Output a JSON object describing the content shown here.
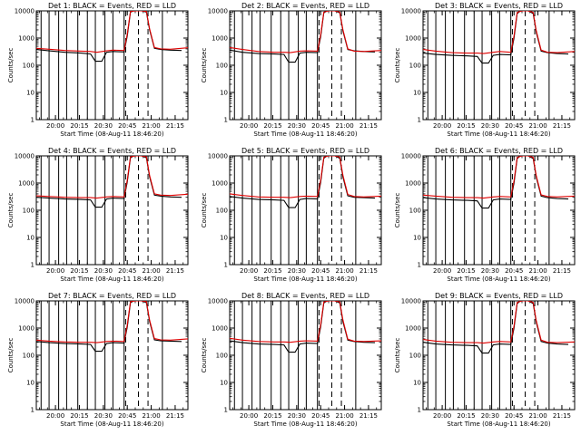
{
  "colors": {
    "events": "#000000",
    "lld": "#e00000"
  },
  "chart_data": {
    "type": "line",
    "yscale": "log",
    "ylim": [
      1,
      10000
    ],
    "ylabel": "Counts/sec",
    "xlabel": "Start Time (08-Aug-11 18:46:20)",
    "x_tick_labels": [
      "20:00",
      "20:15",
      "20:30",
      "20:45",
      "21:00",
      "21:15"
    ],
    "x_tick_minutes": [
      74,
      89,
      104,
      119,
      134,
      149
    ],
    "y_tick_labels": [
      "1",
      "10",
      "100",
      "1000",
      "10000"
    ],
    "y_tick_values": [
      1,
      10,
      100,
      1000,
      10000
    ],
    "xlim_minutes": [
      62,
      157
    ],
    "vertical_markers": {
      "solid_minutes": [
        65,
        70,
        76,
        81,
        88,
        94,
        99,
        105,
        110,
        117,
        141
      ],
      "dashed_minutes": [
        118,
        126,
        132
      ]
    },
    "panels": [
      {
        "title": "Det 1: BLACK = Events, RED = LLD",
        "series": [
          {
            "name": "Events",
            "color": "#000000",
            "x": [
              62,
              70,
              80,
              90,
              96,
              99,
              103,
              106,
              110,
              117,
              119,
              121,
              123,
              128,
              131,
              133,
              136,
              140,
              146,
              153
            ],
            "y": [
              380,
              340,
              300,
              280,
              260,
              140,
              140,
              300,
              320,
              310,
              1200,
              9000,
              10000,
              10000,
              9000,
              2000,
              420,
              380,
              360,
              350
            ]
          },
          {
            "name": "LLD",
            "color": "#e00000",
            "x": [
              62,
              70,
              80,
              90,
              96,
              100,
              106,
              110,
              117,
              119,
              121,
              124,
              128,
              131,
              133,
              136,
              140,
              146,
              157
            ],
            "y": [
              420,
              390,
              350,
              330,
              320,
              300,
              340,
              360,
              350,
              1400,
              9500,
              10000,
              10000,
              9500,
              2200,
              450,
              400,
              390,
              440
            ]
          }
        ]
      },
      {
        "title": "Det 2: BLACK = Events, RED = LLD",
        "series": [
          {
            "name": "Events",
            "color": "#000000",
            "x": [
              62,
              70,
              80,
              90,
              96,
              99,
              103,
              106,
              110,
              117,
              119,
              121,
              123,
              128,
              131,
              133,
              136,
              140,
              146,
              153
            ],
            "y": [
              360,
              300,
              270,
              260,
              250,
              130,
              130,
              280,
              300,
              290,
              1100,
              8500,
              10000,
              10000,
              8500,
              1800,
              380,
              340,
              320,
              310
            ]
          },
          {
            "name": "LLD",
            "color": "#e00000",
            "x": [
              62,
              70,
              80,
              90,
              96,
              100,
              106,
              110,
              117,
              119,
              121,
              124,
              128,
              131,
              133,
              136,
              140,
              146,
              157
            ],
            "y": [
              450,
              380,
              320,
              300,
              300,
              290,
              330,
              340,
              330,
              1300,
              9000,
              10000,
              10000,
              9000,
              2000,
              400,
              330,
              320,
              350
            ]
          }
        ]
      },
      {
        "title": "Det 3: BLACK = Events, RED = LLD",
        "series": [
          {
            "name": "Events",
            "color": "#000000",
            "x": [
              62,
              70,
              80,
              90,
              96,
              99,
              103,
              106,
              110,
              117,
              119,
              121,
              123,
              128,
              131,
              133,
              136,
              140,
              146,
              153
            ],
            "y": [
              280,
              250,
              230,
              220,
              210,
              120,
              120,
              230,
              250,
              240,
              1000,
              8000,
              10000,
              10000,
              8000,
              1600,
              330,
              290,
              270,
              260
            ]
          },
          {
            "name": "LLD",
            "color": "#e00000",
            "x": [
              62,
              70,
              80,
              90,
              96,
              100,
              106,
              110,
              117,
              119,
              121,
              124,
              128,
              131,
              133,
              136,
              140,
              146,
              157
            ],
            "y": [
              380,
              330,
              290,
              280,
              280,
              270,
              300,
              320,
              300,
              1200,
              8800,
              10000,
              10000,
              8800,
              1800,
              360,
              300,
              290,
              320
            ]
          }
        ]
      },
      {
        "title": "Det 4: BLACK = Events, RED = LLD",
        "series": [
          {
            "name": "Events",
            "color": "#000000",
            "x": [
              62,
              70,
              80,
              90,
              96,
              99,
              103,
              106,
              110,
              117,
              119,
              121,
              123,
              128,
              131,
              133,
              136,
              140,
              146,
              153
            ],
            "y": [
              300,
              280,
              260,
              250,
              240,
              130,
              130,
              260,
              280,
              270,
              1100,
              8500,
              10000,
              10000,
              8500,
              1700,
              360,
              330,
              310,
              300
            ]
          },
          {
            "name": "LLD",
            "color": "#e00000",
            "x": [
              62,
              70,
              80,
              90,
              96,
              100,
              106,
              110,
              117,
              119,
              121,
              124,
              128,
              131,
              133,
              136,
              140,
              146,
              157
            ],
            "y": [
              340,
              320,
              300,
              290,
              290,
              280,
              310,
              320,
              310,
              1300,
              9200,
              10000,
              10000,
              9200,
              1900,
              400,
              360,
              350,
              390
            ]
          }
        ]
      },
      {
        "title": "Det 5: BLACK = Events, RED = LLD",
        "series": [
          {
            "name": "Events",
            "color": "#000000",
            "x": [
              62,
              70,
              80,
              90,
              96,
              99,
              103,
              106,
              110,
              117,
              119,
              121,
              123,
              128,
              131,
              133,
              136,
              140,
              146,
              153
            ],
            "y": [
              320,
              280,
              250,
              240,
              230,
              125,
              125,
              250,
              270,
              260,
              1050,
              8200,
              10000,
              10000,
              8200,
              1650,
              340,
              300,
              290,
              280
            ]
          },
          {
            "name": "LLD",
            "color": "#e00000",
            "x": [
              62,
              70,
              80,
              90,
              96,
              100,
              106,
              110,
              117,
              119,
              121,
              124,
              128,
              131,
              133,
              136,
              140,
              146,
              157
            ],
            "y": [
              400,
              350,
              310,
              300,
              300,
              290,
              320,
              330,
              320,
              1250,
              9000,
              10000,
              10000,
              9000,
              1900,
              380,
              320,
              310,
              330
            ]
          }
        ]
      },
      {
        "title": "Det 6: BLACK = Events, RED = LLD",
        "series": [
          {
            "name": "Events",
            "color": "#000000",
            "x": [
              62,
              70,
              80,
              90,
              96,
              99,
              103,
              106,
              110,
              117,
              119,
              121,
              123,
              128,
              131,
              133,
              136,
              140,
              146,
              153
            ],
            "y": [
              290,
              260,
              240,
              230,
              220,
              120,
              120,
              240,
              260,
              250,
              1000,
              8000,
              10000,
              10000,
              8000,
              1600,
              330,
              290,
              270,
              260
            ]
          },
          {
            "name": "LLD",
            "color": "#e00000",
            "x": [
              62,
              70,
              80,
              90,
              96,
              100,
              106,
              110,
              117,
              119,
              121,
              124,
              128,
              131,
              133,
              136,
              140,
              146,
              157
            ],
            "y": [
              360,
              330,
              300,
              290,
              290,
              280,
              310,
              320,
              310,
              1200,
              8800,
              10000,
              10000,
              8800,
              1800,
              370,
              320,
              310,
              330
            ]
          }
        ]
      },
      {
        "title": "Det 7: BLACK = Events, RED = LLD",
        "series": [
          {
            "name": "Events",
            "color": "#000000",
            "x": [
              62,
              70,
              80,
              90,
              96,
              99,
              103,
              106,
              110,
              117,
              119,
              121,
              123,
              128,
              131,
              133,
              136,
              140,
              146,
              153
            ],
            "y": [
              320,
              290,
              270,
              260,
              250,
              140,
              140,
              270,
              290,
              280,
              1100,
              8600,
              10000,
              10000,
              8600,
              1750,
              370,
              340,
              330,
              320
            ]
          },
          {
            "name": "LLD",
            "color": "#e00000",
            "x": [
              62,
              70,
              80,
              90,
              96,
              100,
              106,
              110,
              117,
              119,
              121,
              124,
              128,
              131,
              133,
              136,
              140,
              146,
              157
            ],
            "y": [
              360,
              330,
              310,
              300,
              300,
              290,
              320,
              330,
              320,
              1300,
              9300,
              10000,
              10000,
              9300,
              1950,
              410,
              370,
              360,
              400
            ]
          }
        ]
      },
      {
        "title": "Det 8: BLACK = Events, RED = LLD",
        "series": [
          {
            "name": "Events",
            "color": "#000000",
            "x": [
              62,
              70,
              80,
              90,
              96,
              99,
              103,
              106,
              110,
              117,
              119,
              121,
              123,
              128,
              131,
              133,
              136,
              140,
              146,
              153
            ],
            "y": [
              340,
              290,
              260,
              250,
              240,
              130,
              130,
              260,
              280,
              270,
              1100,
              8400,
              10000,
              10000,
              8400,
              1700,
              360,
              320,
              300,
              290
            ]
          },
          {
            "name": "LLD",
            "color": "#e00000",
            "x": [
              62,
              70,
              80,
              90,
              96,
              100,
              106,
              110,
              117,
              119,
              121,
              124,
              128,
              131,
              133,
              136,
              140,
              146,
              157
            ],
            "y": [
              420,
              360,
              320,
              310,
              310,
              300,
              330,
              340,
              330,
              1300,
              9100,
              10000,
              10000,
              9100,
              1950,
              390,
              330,
              320,
              340
            ]
          }
        ]
      },
      {
        "title": "Det 9: BLACK = Events, RED = LLD",
        "series": [
          {
            "name": "Events",
            "color": "#000000",
            "x": [
              62,
              70,
              80,
              90,
              96,
              99,
              103,
              106,
              110,
              117,
              119,
              121,
              123,
              128,
              131,
              133,
              136,
              140,
              146,
              153
            ],
            "y": [
              300,
              260,
              240,
              230,
              220,
              120,
              120,
              240,
              260,
              250,
              1000,
              8000,
              10000,
              10000,
              8000,
              1600,
              320,
              280,
              260,
              250
            ]
          },
          {
            "name": "LLD",
            "color": "#e00000",
            "x": [
              62,
              70,
              80,
              90,
              96,
              100,
              106,
              110,
              117,
              119,
              121,
              124,
              128,
              131,
              133,
              136,
              140,
              146,
              157
            ],
            "y": [
              380,
              330,
              300,
              290,
              290,
              280,
              310,
              320,
              310,
              1200,
              8800,
              10000,
              10000,
              8800,
              1800,
              360,
              300,
              290,
              310
            ]
          }
        ]
      }
    ]
  }
}
